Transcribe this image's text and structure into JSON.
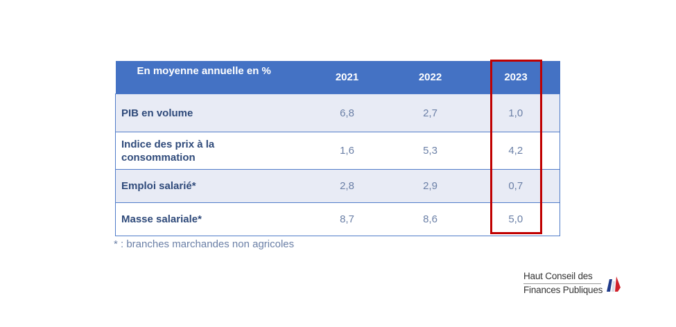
{
  "table": {
    "header": {
      "label": "En moyenne annuelle en %",
      "years": [
        "2021",
        "2022",
        "2023"
      ]
    },
    "rows": [
      {
        "label": "PIB en volume",
        "values": [
          "6,8",
          "2,7",
          "1,0"
        ]
      },
      {
        "label": "Indice des prix à la consommation",
        "values": [
          "1,6",
          "5,3",
          "4,2"
        ]
      },
      {
        "label": "Emploi salarié*",
        "values": [
          "2,8",
          "2,9",
          "0,7"
        ]
      },
      {
        "label": "Masse salariale*",
        "values": [
          "8,7",
          "8,6",
          "5,0"
        ]
      }
    ],
    "highlighted_column": "2023"
  },
  "footnote": "* : branches marchandes non agricoles",
  "logo": {
    "line1": "Haut Conseil des",
    "line2": "Finances Publiques"
  },
  "colors": {
    "header_bg": "#4472c4",
    "row_odd_bg": "#e8ebf5",
    "label_text": "#2f4a7a",
    "value_text": "#6a7fa6",
    "highlight": "#c00000",
    "flag_blue": "#1f3a8a",
    "flag_red": "#d0202a"
  }
}
